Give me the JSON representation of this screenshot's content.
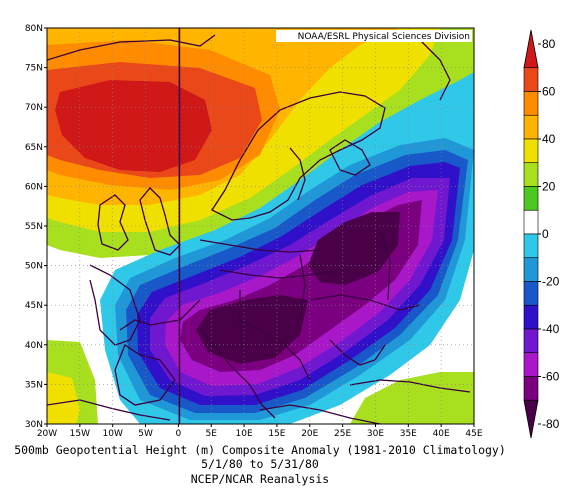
{
  "map": {
    "credit": "NOAA/ESRL Physical Sciences Division",
    "lon_labels": [
      "20W",
      "15W",
      "10W",
      "5W",
      "0",
      "5E",
      "10E",
      "15E",
      "20E",
      "25E",
      "30E",
      "35E",
      "40E",
      "45E"
    ],
    "lat_labels": [
      "30N",
      "35N",
      "40N",
      "45N",
      "50N",
      "55N",
      "60N",
      "65N",
      "70N",
      "75N",
      "80N"
    ],
    "lon_range": [
      -20,
      45
    ],
    "lat_range": [
      30,
      80
    ]
  },
  "colorbar": {
    "labels": [
      "80",
      "60",
      "40",
      "20",
      "0",
      "-20",
      "-40",
      "-60",
      "-80"
    ],
    "colors": [
      "#d01818",
      "#ea4818",
      "#ff8c00",
      "#ffb400",
      "#f0e000",
      "#a8e020",
      "#4cc820",
      "#ffffff",
      "#30c8e8",
      "#2098d8",
      "#1858c8",
      "#3010c8",
      "#7018d0",
      "#a818c8",
      "#7a0080",
      "#4a0048"
    ]
  },
  "captions": {
    "line1": "500mb Geopotential Height (m) Composite Anomaly (1981-2010 Climatology)",
    "line2": "5/1/80  to 5/31/80",
    "line3": "NCEP/NCAR Reanalysis"
  }
}
